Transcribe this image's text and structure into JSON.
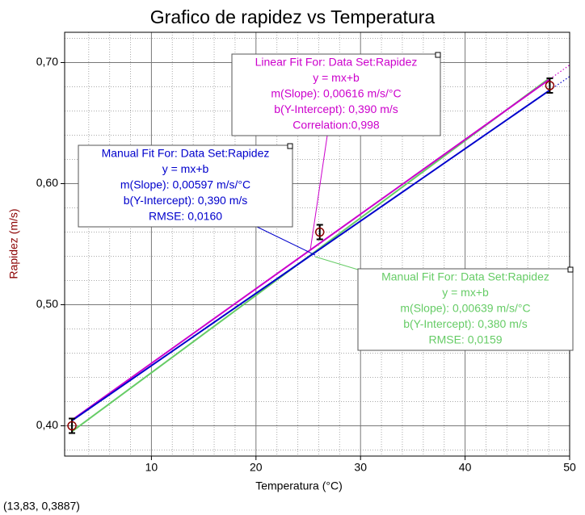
{
  "chart_data": {
    "type": "scatter",
    "title": "Grafico de rapidez vs Temperatura",
    "xlabel": "Temperatura (°C)",
    "ylabel": "Rapidez (m/s)",
    "xlim": [
      1.7,
      50
    ],
    "ylim": [
      0.375,
      0.725
    ],
    "xticks": [
      10,
      20,
      30,
      40,
      50
    ],
    "yticks": [
      {
        "value": 0.4,
        "label": "0,40"
      },
      {
        "value": 0.5,
        "label": "0,50"
      },
      {
        "value": 0.6,
        "label": "0,60"
      },
      {
        "value": 0.7,
        "label": "0,70"
      }
    ],
    "xminorticks": [
      4,
      6,
      8,
      12,
      14,
      16,
      18,
      22,
      24,
      26,
      28,
      32,
      34,
      36,
      38,
      42,
      44,
      46,
      48
    ],
    "yminorticks": [
      0.38,
      0.42,
      0.44,
      0.46,
      0.48,
      0.52,
      0.54,
      0.56,
      0.58,
      0.62,
      0.64,
      0.66,
      0.68,
      0.72
    ],
    "grid": true,
    "series": [
      {
        "type": "line",
        "color": "#66cc66",
        "x": [
          2.4,
          48.1
        ],
        "values": [
          0.3953,
          0.6873
        ]
      },
      {
        "type": "line",
        "color": "#cc00cc",
        "x": [
          2.4,
          48.1
        ],
        "values": [
          0.4048,
          0.6863
        ]
      },
      {
        "type": "line",
        "dashed": true,
        "color": "#cc00cc",
        "x": [
          48.1,
          50
        ],
        "values": [
          0.6863,
          0.698
        ]
      },
      {
        "type": "line",
        "color": "#0000cc",
        "x": [
          2.4,
          48.1
        ],
        "values": [
          0.4043,
          0.6772
        ]
      },
      {
        "type": "line",
        "dashed": true,
        "color": "#0000cc",
        "x": [
          48.1,
          50
        ],
        "values": [
          0.6772,
          0.6885
        ]
      },
      {
        "type": "scatter",
        "color": "#8b0000",
        "x": [
          2.4,
          26.1,
          48.1
        ],
        "values": [
          0.4,
          0.56,
          0.681
        ],
        "errors": [
          0.006,
          0.006,
          0.006
        ]
      }
    ],
    "annotations": [
      {
        "color": "#cc00cc",
        "lines": [
          "Linear Fit For:  Data Set:Rapidez",
          "y = mx+b",
          "m(Slope): 0,00616 m/s/°C",
          "b(Y-Intercept): 0,390 m/s",
          "Correlation:0,998"
        ]
      },
      {
        "color": "#0000cc",
        "lines": [
          "Manual Fit For:  Data Set:Rapidez",
          "y = mx+b",
          "m(Slope): 0,00597 m/s/°C",
          "b(Y-Intercept): 0,390 m/s",
          "RMSE: 0,0160"
        ]
      },
      {
        "color": "#66cc66",
        "lines": [
          "Manual Fit For:  Data Set:Rapidez",
          "y = mx+b",
          "m(Slope): 0,00639 m/s/°C",
          "b(Y-Intercept): 0,380 m/s",
          "RMSE: 0,0159"
        ]
      }
    ],
    "status": "(13,83, 0,3887)"
  }
}
